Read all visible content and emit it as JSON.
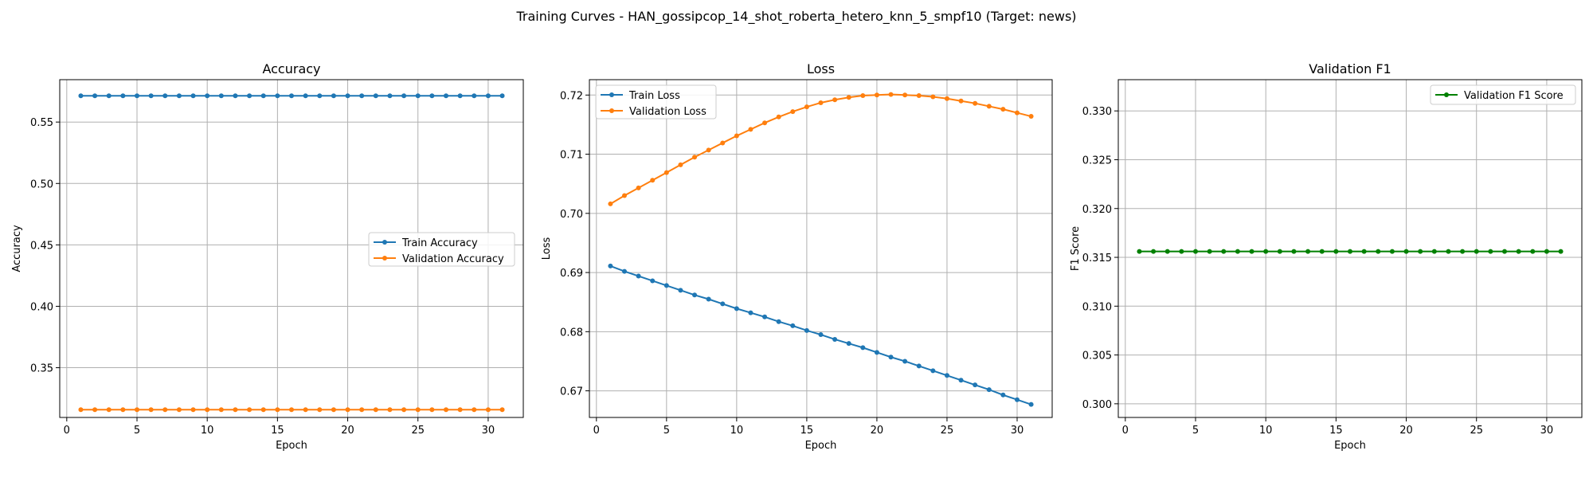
{
  "suptitle": "Training Curves - HAN_gossipcop_14_shot_roberta_hetero_knn_5_smpf10 (Target: news)",
  "colors": {
    "blue": "#1f77b4",
    "orange": "#ff7f0e",
    "green": "#008000",
    "grid": "#b0b0b0",
    "legend_border": "#cccccc"
  },
  "chart_data": [
    {
      "type": "line",
      "title": "Accuracy",
      "xlabel": "Epoch",
      "ylabel": "Accuracy",
      "grid": true,
      "legend_position": "center-right",
      "xlim": [
        -0.5,
        32.5
      ],
      "ylim": [
        0.3095,
        0.5845
      ],
      "xticks": [
        0,
        5,
        10,
        15,
        20,
        25,
        30
      ],
      "yticks": [
        0.35,
        0.4,
        0.45,
        0.5,
        0.55
      ],
      "ytick_labels": [
        "0.35",
        "0.40",
        "0.45",
        "0.50",
        "0.55"
      ],
      "x": [
        1,
        2,
        3,
        4,
        5,
        6,
        7,
        8,
        9,
        10,
        11,
        12,
        13,
        14,
        15,
        16,
        17,
        18,
        19,
        20,
        21,
        22,
        23,
        24,
        25,
        26,
        27,
        28,
        29,
        30,
        31
      ],
      "series": [
        {
          "name": "Train Accuracy",
          "color": "#1f77b4",
          "values": [
            0.5714,
            0.5714,
            0.5714,
            0.5714,
            0.5714,
            0.5714,
            0.5714,
            0.5714,
            0.5714,
            0.5714,
            0.5714,
            0.5714,
            0.5714,
            0.5714,
            0.5714,
            0.5714,
            0.5714,
            0.5714,
            0.5714,
            0.5714,
            0.5714,
            0.5714,
            0.5714,
            0.5714,
            0.5714,
            0.5714,
            0.5714,
            0.5714,
            0.5714,
            0.5714,
            0.5714
          ]
        },
        {
          "name": "Validation Accuracy",
          "color": "#ff7f0e",
          "values": [
            0.3158,
            0.3158,
            0.3158,
            0.3158,
            0.3158,
            0.3158,
            0.3158,
            0.3158,
            0.3158,
            0.3158,
            0.3158,
            0.3158,
            0.3158,
            0.3158,
            0.3158,
            0.3158,
            0.3158,
            0.3158,
            0.3158,
            0.3158,
            0.3158,
            0.3158,
            0.3158,
            0.3158,
            0.3158,
            0.3158,
            0.3158,
            0.3158,
            0.3158,
            0.3158,
            0.3158
          ]
        }
      ]
    },
    {
      "type": "line",
      "title": "Loss",
      "xlabel": "Epoch",
      "ylabel": "Loss",
      "grid": true,
      "legend_position": "top-left",
      "xlim": [
        -0.5,
        32.5
      ],
      "ylim": [
        0.6655,
        0.7226
      ],
      "xticks": [
        0,
        5,
        10,
        15,
        20,
        25,
        30
      ],
      "yticks": [
        0.67,
        0.68,
        0.69,
        0.7,
        0.71,
        0.72
      ],
      "ytick_labels": [
        "0.67",
        "0.68",
        "0.69",
        "0.70",
        "0.71",
        "0.72"
      ],
      "x": [
        1,
        2,
        3,
        4,
        5,
        6,
        7,
        8,
        9,
        10,
        11,
        12,
        13,
        14,
        15,
        16,
        17,
        18,
        19,
        20,
        21,
        22,
        23,
        24,
        25,
        26,
        27,
        28,
        29,
        30,
        31
      ],
      "series": [
        {
          "name": "Train Loss",
          "color": "#1f77b4",
          "values": [
            0.6911,
            0.6902,
            0.6894,
            0.6886,
            0.6878,
            0.687,
            0.6862,
            0.6855,
            0.6847,
            0.6839,
            0.6832,
            0.6825,
            0.6817,
            0.681,
            0.6802,
            0.6795,
            0.6787,
            0.678,
            0.6773,
            0.6765,
            0.6757,
            0.675,
            0.6742,
            0.6734,
            0.6726,
            0.6718,
            0.671,
            0.6702,
            0.6693,
            0.6685,
            0.6677
          ]
        },
        {
          "name": "Validation Loss",
          "color": "#ff7f0e",
          "values": [
            0.7016,
            0.703,
            0.7043,
            0.7056,
            0.7069,
            0.7082,
            0.7095,
            0.7107,
            0.7119,
            0.7131,
            0.7142,
            0.7153,
            0.7163,
            0.7172,
            0.718,
            0.7187,
            0.7192,
            0.7196,
            0.7199,
            0.72,
            0.7201,
            0.72,
            0.7199,
            0.7197,
            0.7194,
            0.719,
            0.7186,
            0.7181,
            0.7176,
            0.717,
            0.7164
          ]
        }
      ]
    },
    {
      "type": "line",
      "title": "Validation F1",
      "xlabel": "Epoch",
      "ylabel": "F1 Score",
      "grid": true,
      "legend_position": "top-right",
      "xlim": [
        -0.5,
        32.5
      ],
      "ylim": [
        0.2986,
        0.3332
      ],
      "xticks": [
        0,
        5,
        10,
        15,
        20,
        25,
        30
      ],
      "yticks": [
        0.3,
        0.305,
        0.31,
        0.315,
        0.32,
        0.325,
        0.33
      ],
      "ytick_labels": [
        "0.300",
        "0.305",
        "0.310",
        "0.315",
        "0.320",
        "0.325",
        "0.330"
      ],
      "x": [
        1,
        2,
        3,
        4,
        5,
        6,
        7,
        8,
        9,
        10,
        11,
        12,
        13,
        14,
        15,
        16,
        17,
        18,
        19,
        20,
        21,
        22,
        23,
        24,
        25,
        26,
        27,
        28,
        29,
        30,
        31
      ],
      "series": [
        {
          "name": "Validation F1 Score",
          "color": "#008000",
          "values": [
            0.3156,
            0.3156,
            0.3156,
            0.3156,
            0.3156,
            0.3156,
            0.3156,
            0.3156,
            0.3156,
            0.3156,
            0.3156,
            0.3156,
            0.3156,
            0.3156,
            0.3156,
            0.3156,
            0.3156,
            0.3156,
            0.3156,
            0.3156,
            0.3156,
            0.3156,
            0.3156,
            0.3156,
            0.3156,
            0.3156,
            0.3156,
            0.3156,
            0.3156,
            0.3156,
            0.3156
          ]
        }
      ]
    }
  ]
}
